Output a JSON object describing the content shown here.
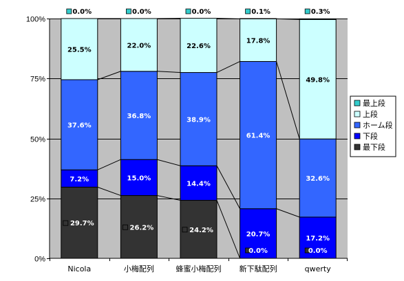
{
  "chart_data": {
    "type": "bar",
    "stacked": true,
    "percent": true,
    "categories": [
      "Nicola",
      "小梅配列",
      "蜂蜜小梅配列",
      "新下駄配列",
      "qwerty"
    ],
    "series": [
      {
        "name": "最下段",
        "color": "#333333",
        "values": [
          29.7,
          26.2,
          24.2,
          0.0,
          0.0
        ],
        "labels": [
          "29.7%",
          "26.2%",
          "24.2%",
          "0.0%",
          "0.0%"
        ]
      },
      {
        "name": "下段",
        "color": "#0000ff",
        "values": [
          7.2,
          15.0,
          14.4,
          20.7,
          17.2
        ],
        "labels": [
          "7.2%",
          "15.0%",
          "14.4%",
          "20.7%",
          "17.2%"
        ]
      },
      {
        "name": "ホーム段",
        "color": "#3366ff",
        "values": [
          37.6,
          36.8,
          38.9,
          61.4,
          32.6
        ],
        "labels": [
          "37.6%",
          "36.8%",
          "38.9%",
          "61.4%",
          "32.6%"
        ]
      },
      {
        "name": "上段",
        "color": "#ccffff",
        "values": [
          25.5,
          22.0,
          22.6,
          17.8,
          49.8
        ],
        "labels": [
          "25.5%",
          "22.0%",
          "22.6%",
          "17.8%",
          "49.8%"
        ]
      },
      {
        "name": "最上段",
        "color": "#33cccc",
        "values": [
          0.0,
          0.0,
          0.0,
          0.1,
          0.3
        ],
        "labels": [
          "0.0%",
          "0.0%",
          "0.0%",
          "0.1%",
          "0.3%"
        ]
      }
    ],
    "ylim": [
      0,
      100
    ],
    "yticks": [
      {
        "value": 0,
        "label": "0%"
      },
      {
        "value": 25,
        "label": "25%"
      },
      {
        "value": 50,
        "label": "50%"
      },
      {
        "value": 75,
        "label": "75%"
      },
      {
        "value": 100,
        "label": "100%"
      }
    ],
    "grid": true,
    "series_lines": true,
    "plot_background": "#c0c0c0",
    "legend": {
      "position": "right",
      "items": [
        "最上段",
        "上段",
        "ホーム段",
        "下段",
        "最下段"
      ]
    }
  }
}
